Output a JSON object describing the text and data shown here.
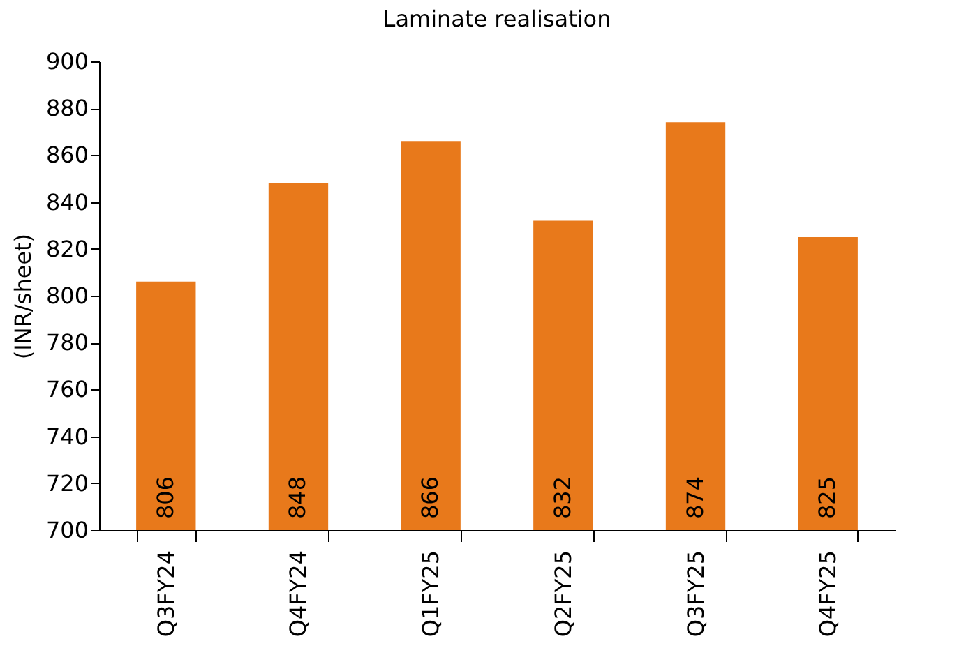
{
  "chart_data": {
    "type": "bar",
    "title": "Laminate realisation",
    "ylabel": "(INR/sheet)",
    "categories": [
      "Q3FY24",
      "Q4FY24",
      "Q1FY25",
      "Q2FY25",
      "Q3FY25",
      "Q4FY25"
    ],
    "values": [
      806,
      848,
      866,
      832,
      874,
      825
    ],
    "color": "#e8791b",
    "ylim": [
      700,
      900
    ],
    "yticks": [
      700,
      720,
      740,
      760,
      780,
      800,
      820,
      840,
      860,
      880,
      900
    ],
    "grid": false,
    "data_labels": true
  }
}
